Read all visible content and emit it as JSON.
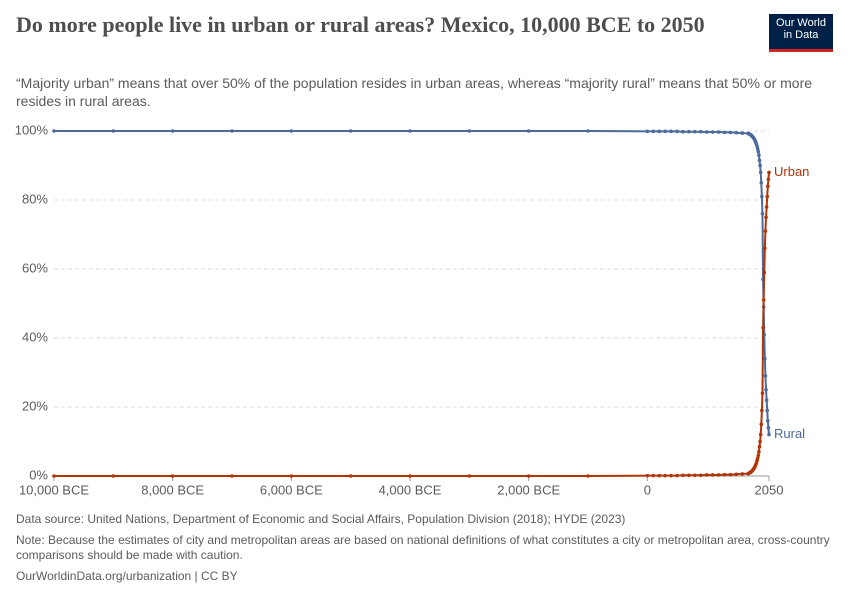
{
  "chart_data": {
    "type": "line",
    "title": "Do more people live in urban or rural areas? Mexico, 10,000 BCE to 2050",
    "subtitle": "“Majority urban” means that over 50% of the population resides in urban areas, whereas “majority rural” means that 50% or more resides in rural areas.",
    "source": "Data source: United Nations, Department of Economic and Social Affairs, Population Division (2018); HYDE (2023)",
    "note": "Note: Because the estimates of city and metropolitan areas are based on national definitions of what constitutes a city or metropolitan area, cross-country comparisons should be made with caution.",
    "footer": "OurWorldinData.org/urbanization | CC BY",
    "logo": "Our World in Data",
    "x": [
      -10000,
      -9000,
      -8000,
      -7000,
      -6000,
      -5000,
      -4000,
      -3000,
      -2000,
      -1000,
      0,
      100,
      200,
      300,
      400,
      500,
      600,
      700,
      800,
      900,
      1000,
      1100,
      1200,
      1300,
      1400,
      1500,
      1600,
      1700,
      1710,
      1720,
      1730,
      1740,
      1750,
      1760,
      1770,
      1780,
      1790,
      1800,
      1810,
      1820,
      1830,
      1840,
      1850,
      1860,
      1870,
      1880,
      1890,
      1900,
      1910,
      1920,
      1930,
      1940,
      1950,
      1960,
      1970,
      1980,
      1990,
      2000,
      2010,
      2020,
      2030,
      2040,
      2050
    ],
    "series": [
      {
        "name": "Rural",
        "color": "#4c6a9c",
        "values": [
          100,
          100,
          100,
          100,
          100,
          100,
          100,
          100,
          100,
          100,
          99.9,
          99.9,
          99.9,
          99.9,
          99.9,
          99.9,
          99.8,
          99.8,
          99.8,
          99.8,
          99.7,
          99.7,
          99.7,
          99.6,
          99.6,
          99.5,
          99.4,
          99.3,
          99.2,
          99.1,
          99,
          98.9,
          98.8,
          98.6,
          98.4,
          98.2,
          98,
          97.7,
          97.4,
          97,
          96.6,
          96.1,
          95.5,
          94.8,
          94,
          93,
          91.5,
          90,
          88,
          85,
          81,
          76,
          57,
          49,
          41,
          34,
          29,
          25,
          22,
          19,
          16,
          14,
          12
        ]
      },
      {
        "name": "Urban",
        "color": "#b13507",
        "values": [
          0,
          0,
          0,
          0,
          0,
          0,
          0,
          0,
          0,
          0,
          0.1,
          0.1,
          0.1,
          0.1,
          0.1,
          0.1,
          0.2,
          0.2,
          0.2,
          0.2,
          0.3,
          0.3,
          0.3,
          0.4,
          0.4,
          0.5,
          0.6,
          0.7,
          0.8,
          0.9,
          1,
          1.1,
          1.2,
          1.4,
          1.6,
          1.8,
          2,
          2.3,
          2.6,
          3,
          3.4,
          3.9,
          4.5,
          5.2,
          6,
          7,
          8.5,
          10,
          12,
          15,
          19,
          24,
          43,
          51,
          59,
          66,
          71,
          75,
          78,
          81,
          84,
          86,
          88
        ]
      }
    ],
    "xlim": [
      -10000,
      2050
    ],
    "xticks": [
      {
        "value": -10000,
        "label": "10,000 BCE"
      },
      {
        "value": -8000,
        "label": "8,000 BCE"
      },
      {
        "value": -6000,
        "label": "6,000 BCE"
      },
      {
        "value": -4000,
        "label": "4,000 BCE"
      },
      {
        "value": -2000,
        "label": "2,000 BCE"
      },
      0,
      2050
    ],
    "ylim": [
      0,
      100
    ],
    "yticks": [
      {
        "value": 0,
        "label": "0%"
      },
      {
        "value": 20,
        "label": "20%"
      },
      {
        "value": 40,
        "label": "40%"
      },
      {
        "value": 60,
        "label": "60%"
      },
      {
        "value": 80,
        "label": "80%"
      },
      {
        "value": 100,
        "label": "100%"
      }
    ],
    "grid": true
  }
}
